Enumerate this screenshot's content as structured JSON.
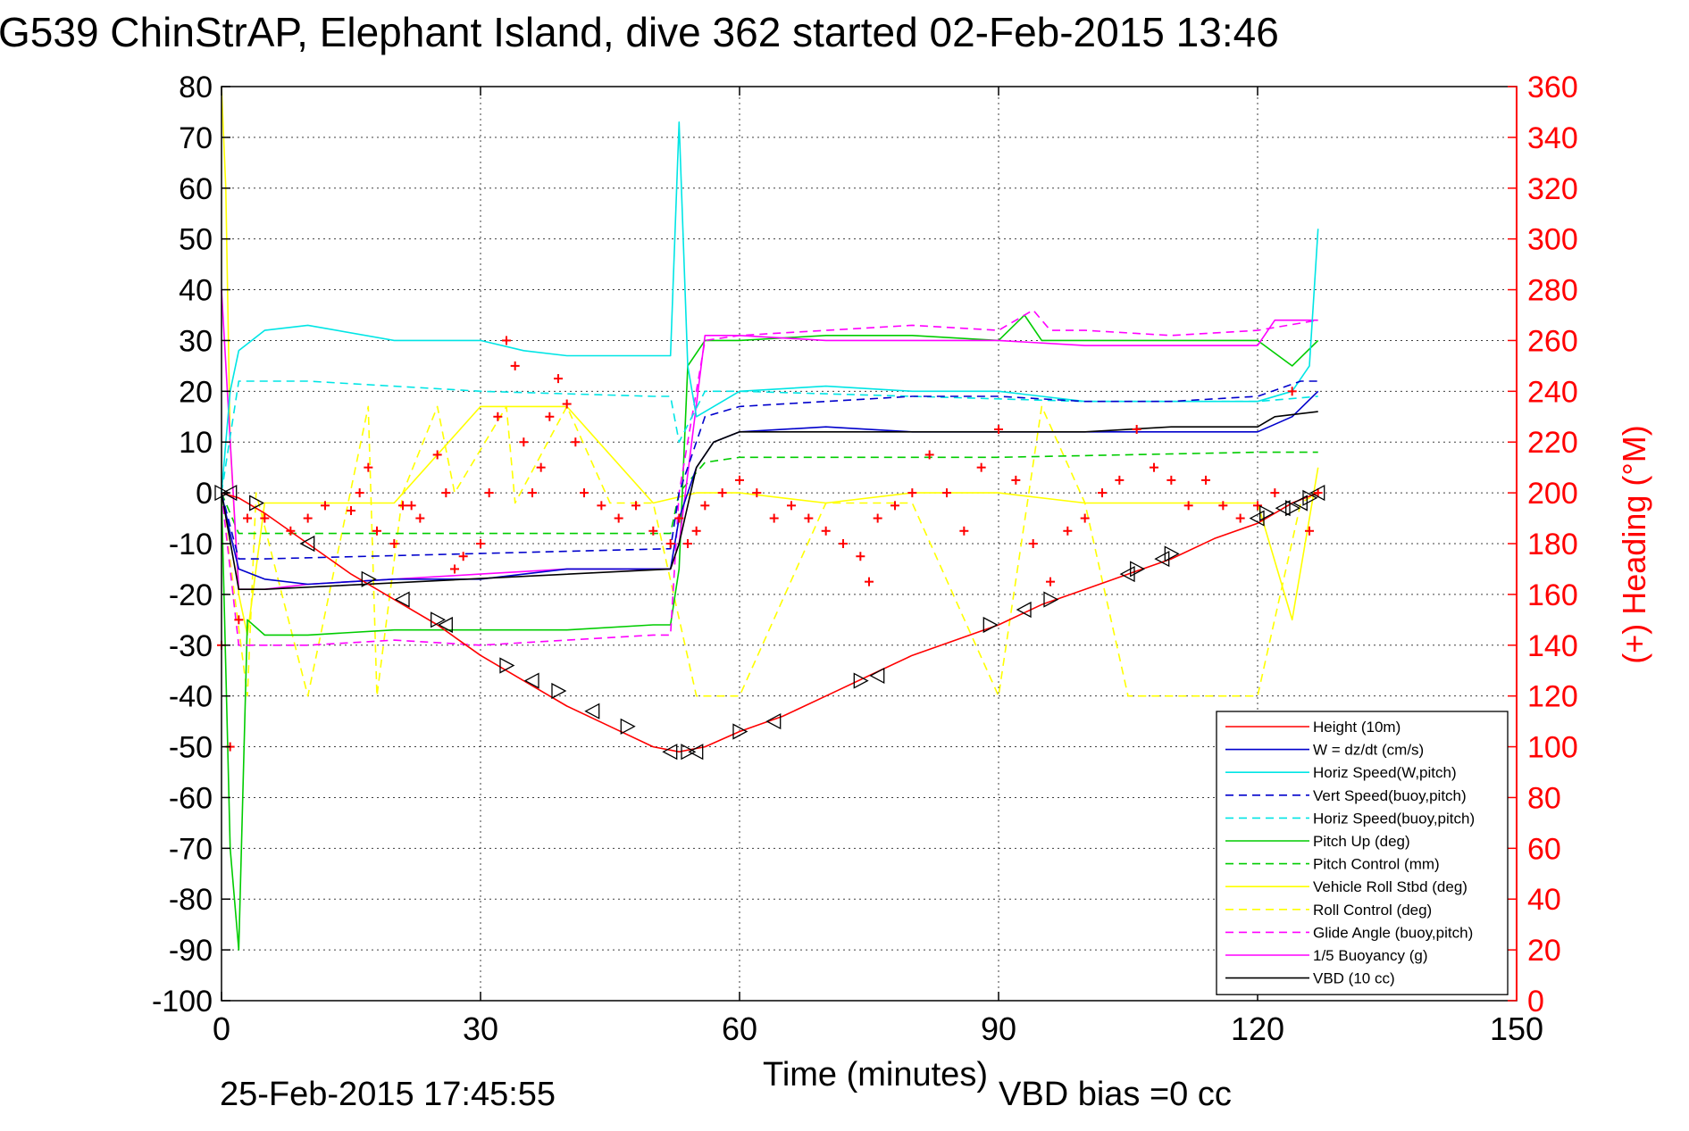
{
  "chart_data": {
    "type": "line",
    "title": "G539 ChinStrAP, Elephant Island, dive 362 started 02-Feb-2015 13:46",
    "xlabel": "Time (minutes)",
    "ylabel_left": "",
    "ylabel_right": "(+) Heading (°M)",
    "xlim": [
      0,
      150
    ],
    "ylim_left": [
      -100,
      80
    ],
    "ylim_right": [
      0,
      360
    ],
    "x_ticks": [
      0,
      30,
      60,
      90,
      120,
      150
    ],
    "y_ticks_left": [
      80,
      70,
      60,
      50,
      40,
      30,
      20,
      10,
      0,
      -10,
      -20,
      -30,
      -40,
      -50,
      -60,
      -70,
      -80,
      -90,
      -100
    ],
    "y_ticks_right": [
      360,
      340,
      320,
      300,
      280,
      260,
      240,
      220,
      200,
      180,
      160,
      140,
      120,
      100,
      80,
      60,
      40,
      20,
      0
    ],
    "grid": true,
    "legend_position": "bottom-right",
    "footer_left": "25-Feb-2015 17:45:55",
    "footer_right": "VBD bias =0 cc",
    "series": [
      {
        "name": "Height (10m)",
        "color": "#ff0000",
        "style": "solid",
        "x": [
          0,
          2,
          5,
          10,
          15,
          20,
          25,
          30,
          35,
          40,
          45,
          50,
          53,
          56,
          60,
          65,
          70,
          75,
          80,
          85,
          90,
          95,
          100,
          105,
          110,
          115,
          120,
          122,
          124,
          127
        ],
        "y": [
          0,
          -1,
          -4,
          -10,
          -16,
          -21,
          -26,
          -32,
          -37,
          -42,
          -46,
          -50,
          -51,
          -50,
          -47,
          -44,
          -40,
          -36,
          -32,
          -29,
          -26,
          -22,
          -19,
          -16,
          -13,
          -9,
          -6,
          -4,
          -2,
          0
        ]
      },
      {
        "name": "W = dz/dt (cm/s)",
        "color": "#0000cc",
        "style": "solid",
        "x": [
          0,
          1,
          2,
          5,
          10,
          20,
          30,
          40,
          50,
          52,
          53,
          55,
          57,
          60,
          70,
          80,
          90,
          100,
          110,
          120,
          124,
          127
        ],
        "y": [
          0,
          -8,
          -15,
          -17,
          -18,
          -17,
          -17,
          -15,
          -15,
          -15,
          -5,
          5,
          10,
          12,
          13,
          12,
          12,
          12,
          12,
          12,
          15,
          20
        ]
      },
      {
        "name": "Horiz Speed(W,pitch)",
        "color": "#00e5e5",
        "style": "solid",
        "x": [
          0,
          1,
          2,
          5,
          10,
          20,
          30,
          35,
          40,
          45,
          50,
          52,
          53,
          54,
          55,
          57,
          60,
          70,
          80,
          90,
          100,
          110,
          120,
          124,
          126,
          127
        ],
        "y": [
          0,
          20,
          28,
          32,
          33,
          30,
          30,
          28,
          27,
          27,
          27,
          27,
          73,
          25,
          15,
          17,
          20,
          21,
          20,
          20,
          18,
          18,
          18,
          20,
          25,
          52
        ]
      },
      {
        "name": "Vert Speed(buoy,pitch)",
        "color": "#0000cc",
        "style": "dashed",
        "x": [
          0,
          2,
          5,
          52,
          53,
          56,
          60,
          70,
          80,
          90,
          100,
          110,
          120,
          125,
          127
        ],
        "y": [
          0,
          -13,
          -13,
          -11,
          0,
          15,
          17,
          18,
          19,
          19,
          18,
          18,
          19,
          22,
          22
        ]
      },
      {
        "name": "Horiz Speed(buoy,pitch)",
        "color": "#00e5e5",
        "style": "dashed",
        "x": [
          0,
          2,
          10,
          30,
          50,
          52,
          53,
          56,
          60,
          80,
          100,
          120,
          127
        ],
        "y": [
          0,
          22,
          22,
          20,
          19,
          19,
          10,
          20,
          20,
          19,
          18,
          18,
          19
        ]
      },
      {
        "name": "Pitch Up (deg)",
        "color": "#00cc00",
        "style": "solid",
        "x": [
          0,
          1,
          2,
          3,
          5,
          10,
          20,
          30,
          40,
          50,
          52,
          53,
          54,
          56,
          60,
          70,
          80,
          90,
          93,
          95,
          100,
          110,
          120,
          124,
          127
        ],
        "y": [
          0,
          -70,
          -90,
          -25,
          -28,
          -28,
          -27,
          -27,
          -27,
          -26,
          -26,
          -15,
          25,
          30,
          30,
          31,
          31,
          30,
          35,
          30,
          30,
          30,
          30,
          25,
          30
        ]
      },
      {
        "name": "Pitch Control (mm)",
        "color": "#00cc00",
        "style": "dashed",
        "x": [
          0,
          2,
          5,
          52,
          53,
          56,
          60,
          90,
          120,
          127
        ],
        "y": [
          0,
          -8,
          -8,
          -8,
          0,
          6,
          7,
          7,
          8,
          8
        ]
      },
      {
        "name": "Vehicle Roll Stbd (deg)",
        "color": "#ffff00",
        "style": "solid",
        "x": [
          0,
          0.5,
          1,
          2,
          3,
          5,
          10,
          20,
          30,
          40,
          50,
          55,
          60,
          70,
          80,
          90,
          100,
          110,
          120,
          124,
          127
        ],
        "y": [
          80,
          60,
          10,
          -20,
          -28,
          -2,
          -2,
          -2,
          17,
          17,
          -2,
          0,
          0,
          -2,
          0,
          0,
          -2,
          -2,
          -2,
          -25,
          5
        ]
      },
      {
        "name": "Roll Control (deg)",
        "color": "#ffff00",
        "style": "dashed",
        "x": [
          0,
          3,
          4,
          10,
          17,
          18,
          21,
          25,
          27,
          33,
          34,
          40,
          45,
          50,
          55,
          60,
          70,
          80,
          90,
          95,
          100,
          105,
          110,
          120,
          125,
          127
        ],
        "y": [
          0,
          -40,
          0,
          -40,
          17,
          -40,
          0,
          17,
          0,
          17,
          -2,
          17,
          -2,
          -2,
          -40,
          -40,
          -2,
          -2,
          -40,
          17,
          -2,
          -40,
          -40,
          -40,
          -2,
          0
        ]
      },
      {
        "name": "Glide Angle (buoy,pitch)",
        "color": "#ff00ff",
        "style": "dashed",
        "x": [
          0,
          2,
          5,
          10,
          20,
          30,
          40,
          50,
          52,
          53,
          56,
          60,
          70,
          80,
          90,
          94,
          96,
          100,
          110,
          120,
          127
        ],
        "y": [
          0,
          -30,
          -30,
          -30,
          -29,
          -30,
          -29,
          -28,
          -28,
          0,
          30,
          31,
          32,
          33,
          32,
          36,
          32,
          32,
          31,
          32,
          34
        ]
      },
      {
        "name": "1/5 Buoyancy (g)",
        "color": "#ff00ff",
        "style": "solid",
        "x": [
          0,
          2,
          5,
          10,
          20,
          30,
          40,
          50,
          52,
          53,
          56,
          60,
          70,
          80,
          90,
          100,
          110,
          120,
          122,
          127
        ],
        "y": [
          40,
          -19,
          -19,
          -18,
          -17,
          -16,
          -15,
          -15,
          -15,
          -10,
          31,
          31,
          30,
          30,
          30,
          29,
          29,
          29,
          34,
          34
        ]
      },
      {
        "name": "VBD (10 cc)",
        "color": "#000000",
        "style": "solid",
        "x": [
          0,
          2,
          5,
          52,
          53,
          55,
          57,
          60,
          70,
          80,
          90,
          100,
          110,
          120,
          122,
          127
        ],
        "y": [
          0,
          -19,
          -19,
          -15,
          -10,
          5,
          10,
          12,
          12,
          12,
          12,
          12,
          13,
          13,
          15,
          16
        ]
      }
    ],
    "heading_series": {
      "axis": "right",
      "marker": "+",
      "color": "#ff0000",
      "x": [
        0,
        1,
        2,
        3,
        5,
        8,
        10,
        12,
        15,
        16,
        17,
        18,
        20,
        21,
        22,
        23,
        25,
        26,
        27,
        28,
        30,
        31,
        32,
        33,
        34,
        35,
        36,
        37,
        38,
        39,
        40,
        41,
        42,
        44,
        46,
        48,
        50,
        52,
        53,
        54,
        55,
        56,
        58,
        60,
        62,
        64,
        66,
        68,
        70,
        72,
        74,
        75,
        76,
        78,
        80,
        82,
        84,
        86,
        88,
        90,
        92,
        94,
        96,
        98,
        100,
        102,
        104,
        106,
        108,
        110,
        112,
        114,
        116,
        118,
        120,
        122,
        124,
        126,
        127
      ],
      "y": [
        140,
        100,
        150,
        190,
        190,
        185,
        190,
        195,
        193,
        200,
        210,
        185,
        180,
        195,
        195,
        190,
        215,
        200,
        170,
        175,
        180,
        200,
        230,
        260,
        250,
        220,
        200,
        210,
        230,
        245,
        235,
        220,
        200,
        195,
        190,
        195,
        185,
        180,
        190,
        180,
        185,
        195,
        200,
        205,
        200,
        190,
        195,
        190,
        185,
        180,
        175,
        165,
        190,
        195,
        200,
        215,
        200,
        185,
        210,
        225,
        205,
        180,
        165,
        185,
        190,
        200,
        205,
        225,
        210,
        205,
        195,
        205,
        195,
        190,
        195,
        200,
        240,
        185,
        200
      ]
    },
    "markers": {
      "description": "triangle markers along Height",
      "x": [
        0,
        1,
        4,
        10,
        17,
        21,
        25,
        26,
        33,
        36,
        39,
        43,
        47,
        52,
        54,
        55,
        60,
        64,
        74,
        76,
        89,
        93,
        96,
        105,
        106,
        109,
        110,
        120,
        121,
        123,
        124,
        125,
        126,
        127
      ],
      "y": [
        0,
        0,
        -2,
        -10,
        -17,
        -21,
        -25,
        -26,
        -34,
        -37,
        -39,
        -43,
        -46,
        -51,
        -51,
        -51,
        -47,
        -45,
        -37,
        -36,
        -26,
        -23,
        -21,
        -16,
        -15,
        -13,
        -12,
        -5,
        -4,
        -3,
        -3,
        -2,
        -1,
        0
      ]
    }
  }
}
